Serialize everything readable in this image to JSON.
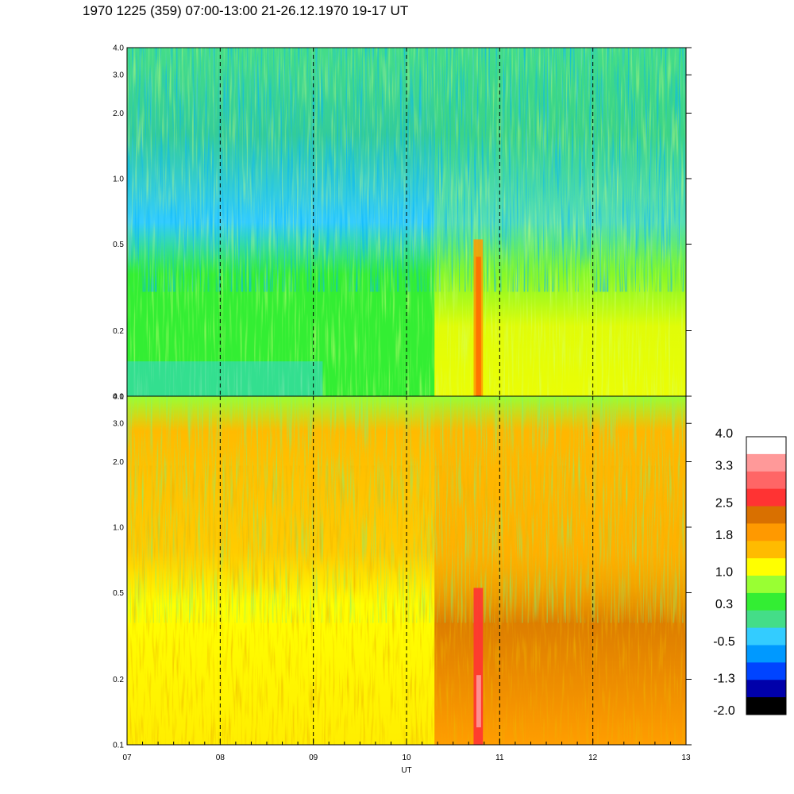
{
  "title": "1970 1225 (359) 07:00-13:00 21-26.12.1970  19-17 UT",
  "chart_data": {
    "type": "heatmap",
    "panels": [
      {
        "name": "",
        "ylim": [
          0.1,
          4.0
        ],
        "y_scale": "log",
        "y_ticks": [
          {
            "value": 0.1,
            "label": "0.1"
          },
          {
            "value": 0.2,
            "label": "0.2"
          },
          {
            "value": 0.5,
            "label": "0.5"
          },
          {
            "value": 1.0,
            "label": "1.0"
          },
          {
            "value": 2.0,
            "label": "2.0"
          },
          {
            "value": 3.0,
            "label": "3.0"
          },
          {
            "value": 4.0,
            "label": "4.0"
          }
        ]
      },
      {
        "name": "",
        "ylim": [
          0.1,
          4.0
        ],
        "y_scale": "log",
        "y_ticks": [
          {
            "value": 0.1,
            "label": "0.1"
          },
          {
            "value": 0.2,
            "label": "0.2"
          },
          {
            "value": 0.5,
            "label": "0.5"
          },
          {
            "value": 1.0,
            "label": "1.0"
          },
          {
            "value": 2.0,
            "label": "2.0"
          },
          {
            "value": 3.0,
            "label": "3.0"
          },
          {
            "value": 4.0,
            "label": "4.0"
          }
        ]
      }
    ],
    "xlim": [
      7,
      13
    ],
    "x_ticks": [
      {
        "value": 7,
        "label": "07"
      },
      {
        "value": 8,
        "label": "08"
      },
      {
        "value": 9,
        "label": "09"
      },
      {
        "value": 10,
        "label": "10"
      },
      {
        "value": 11,
        "label": "11"
      },
      {
        "value": 12,
        "label": "12"
      },
      {
        "value": 13,
        "label": "13"
      }
    ],
    "xlabel": "UT",
    "ylabel": "",
    "grid": "dashed vertical lines at each hour",
    "colorbar": {
      "range": [
        -2.0,
        4.0
      ],
      "labels": [
        {
          "value": 4.0,
          "label": "4.0"
        },
        {
          "value": 3.3,
          "label": "3.3"
        },
        {
          "value": 2.5,
          "label": "2.5"
        },
        {
          "value": 1.8,
          "label": "1.8"
        },
        {
          "value": 1.0,
          "label": "1.0"
        },
        {
          "value": 0.3,
          "label": "0.3"
        },
        {
          "value": -0.5,
          "label": "-0.5"
        },
        {
          "value": -1.3,
          "label": "-1.3"
        },
        {
          "value": -2.0,
          "label": "-2.0"
        }
      ],
      "colors": [
        "#ffffff",
        "#ff9999",
        "#ff6666",
        "#ff3333",
        "#d97000",
        "#ff9900",
        "#ffbb00",
        "#ffff00",
        "#99ff33",
        "#33ee33",
        "#44dd88",
        "#33ccff",
        "#0099ff",
        "#0044ff",
        "#0000aa",
        "#000000"
      ]
    }
  }
}
